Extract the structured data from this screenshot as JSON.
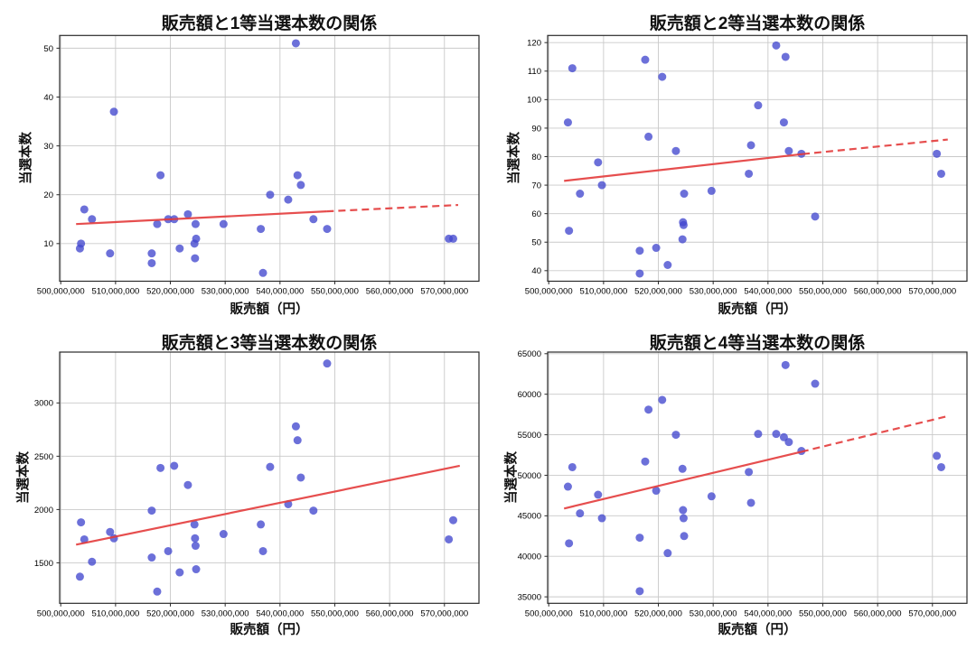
{
  "page": {
    "background": "#ffffff",
    "grid_layout": "2x2"
  },
  "colors": {
    "marker": "#4348ce",
    "marker_opacity": 0.78,
    "trend": "#e33b3b",
    "grid": "#c9c9c9",
    "spine": "#2a2a2a",
    "text": "#000000"
  },
  "chart_data": [
    {
      "type": "scatter",
      "title": "販売額と1等当選本数の関係",
      "xlabel": "販売額（円）",
      "ylabel": "当選本数",
      "grid": true,
      "legend": null,
      "xlim": [
        499800000,
        576300000
      ],
      "ylim": [
        2.3,
        52.6
      ],
      "x_ticks": {
        "values": [
          500000000,
          510000000,
          520000000,
          530000000,
          540000000,
          550000000,
          560000000,
          570000000
        ],
        "labels": [
          "500,000,000",
          "510,000,000",
          "520,000,000",
          "530,000,000",
          "540,000,000",
          "550,000,000",
          "560,000,000",
          "570,000,000"
        ]
      },
      "y_ticks": [
        10,
        20,
        30,
        40,
        50
      ],
      "points": [
        [
          503500000,
          9
        ],
        [
          503700000,
          10
        ],
        [
          504300000,
          17
        ],
        [
          505700000,
          15
        ],
        [
          509000000,
          8
        ],
        [
          509700000,
          37
        ],
        [
          516600000,
          8
        ],
        [
          516600000,
          6
        ],
        [
          517600000,
          14
        ],
        [
          518200000,
          24
        ],
        [
          519600000,
          15
        ],
        [
          520700000,
          15
        ],
        [
          521700000,
          9
        ],
        [
          523200000,
          16
        ],
        [
          524400000,
          10
        ],
        [
          524500000,
          7
        ],
        [
          524600000,
          14
        ],
        [
          524700000,
          11
        ],
        [
          529700000,
          14
        ],
        [
          536500000,
          13
        ],
        [
          536900000,
          4
        ],
        [
          538200000,
          20
        ],
        [
          541500000,
          19
        ],
        [
          542900000,
          51
        ],
        [
          543200000,
          24
        ],
        [
          543800000,
          22
        ],
        [
          546100000,
          15
        ],
        [
          548600000,
          13
        ],
        [
          570800000,
          11
        ],
        [
          571600000,
          11
        ]
      ],
      "trend": {
        "solid": [
          [
            502800000,
            14.0
          ],
          [
            548500000,
            16.6
          ]
        ],
        "dashed": [
          [
            548500000,
            16.6
          ],
          [
            572500000,
            17.9
          ]
        ]
      }
    },
    {
      "type": "scatter",
      "title": "販売額と2等当選本数の関係",
      "xlabel": "販売額（円）",
      "ylabel": "当選本数",
      "grid": true,
      "legend": null,
      "xlim": [
        499800000,
        576300000
      ],
      "ylim": [
        36.3,
        122.5
      ],
      "x_ticks": {
        "values": [
          500000000,
          510000000,
          520000000,
          530000000,
          540000000,
          550000000,
          560000000,
          570000000
        ],
        "labels": [
          "500,000,000",
          "510,000,000",
          "520,000,000",
          "530,000,000",
          "540,000,000",
          "550,000,000",
          "560,000,000",
          "570,000,000"
        ]
      },
      "y_ticks": [
        40,
        50,
        60,
        70,
        80,
        90,
        100,
        110,
        120
      ],
      "points": [
        [
          503500000,
          92
        ],
        [
          503700000,
          54
        ],
        [
          504300000,
          111
        ],
        [
          505700000,
          67
        ],
        [
          509000000,
          78
        ],
        [
          509700000,
          70
        ],
        [
          516600000,
          47
        ],
        [
          516600000,
          39
        ],
        [
          517600000,
          114
        ],
        [
          518200000,
          87
        ],
        [
          519600000,
          48
        ],
        [
          520700000,
          108
        ],
        [
          521700000,
          42
        ],
        [
          523200000,
          82
        ],
        [
          524400000,
          51
        ],
        [
          524500000,
          57
        ],
        [
          524600000,
          56
        ],
        [
          524700000,
          67
        ],
        [
          529700000,
          68
        ],
        [
          536500000,
          74
        ],
        [
          536900000,
          84
        ],
        [
          538200000,
          98
        ],
        [
          541500000,
          119
        ],
        [
          542900000,
          92
        ],
        [
          543200000,
          115
        ],
        [
          543800000,
          82
        ],
        [
          546100000,
          81
        ],
        [
          548600000,
          59
        ],
        [
          570800000,
          81
        ],
        [
          571600000,
          74
        ]
      ],
      "trend": {
        "solid": [
          [
            502800000,
            71.5
          ],
          [
            546300000,
            80.9
          ]
        ],
        "dashed": [
          [
            546300000,
            80.9
          ],
          [
            572800000,
            86.0
          ]
        ]
      }
    },
    {
      "type": "scatter",
      "title": "販売額と3等当選本数の関係",
      "xlabel": "販売額（円）",
      "ylabel": "当選本数",
      "grid": true,
      "legend": null,
      "xlim": [
        499800000,
        576300000
      ],
      "ylim": [
        1120,
        3477
      ],
      "x_ticks": {
        "values": [
          500000000,
          510000000,
          520000000,
          530000000,
          540000000,
          550000000,
          560000000,
          570000000
        ],
        "labels": [
          "500,000,000",
          "510,000,000",
          "520,000,000",
          "530,000,000",
          "540,000,000",
          "550,000,000",
          "560,000,000",
          "570,000,000"
        ]
      },
      "y_ticks": [
        1500,
        2000,
        2500,
        3000
      ],
      "points": [
        [
          503500000,
          1370
        ],
        [
          503700000,
          1880
        ],
        [
          504300000,
          1720
        ],
        [
          505700000,
          1510
        ],
        [
          509000000,
          1790
        ],
        [
          509700000,
          1730
        ],
        [
          516600000,
          1990
        ],
        [
          516600000,
          1550
        ],
        [
          517600000,
          1230
        ],
        [
          518200000,
          2390
        ],
        [
          519600000,
          1610
        ],
        [
          520700000,
          2410
        ],
        [
          521700000,
          1410
        ],
        [
          523200000,
          2230
        ],
        [
          524400000,
          1860
        ],
        [
          524500000,
          1730
        ],
        [
          524600000,
          1660
        ],
        [
          524700000,
          1440
        ],
        [
          529700000,
          1770
        ],
        [
          536500000,
          1860
        ],
        [
          536900000,
          1610
        ],
        [
          538200000,
          2400
        ],
        [
          541500000,
          2050
        ],
        [
          542900000,
          2780
        ],
        [
          543200000,
          2650
        ],
        [
          543800000,
          2300
        ],
        [
          546100000,
          1990
        ],
        [
          548600000,
          3370
        ],
        [
          570800000,
          1720
        ],
        [
          571600000,
          1900
        ]
      ],
      "trend": {
        "solid": [
          [
            502800000,
            1670
          ],
          [
            572800000,
            2410
          ]
        ],
        "dashed": null
      }
    },
    {
      "type": "scatter",
      "title": "販売額と4等当選本数の関係",
      "xlabel": "販売額（円）",
      "ylabel": "当選本数",
      "grid": true,
      "legend": null,
      "xlim": [
        499800000,
        576300000
      ],
      "ylim": [
        34200,
        65200
      ],
      "x_ticks": {
        "values": [
          500000000,
          510000000,
          520000000,
          530000000,
          540000000,
          550000000,
          560000000,
          570000000
        ],
        "labels": [
          "500,000,000",
          "510,000,000",
          "520,000,000",
          "530,000,000",
          "540,000,000",
          "550,000,000",
          "560,000,000",
          "570,000,000"
        ]
      },
      "y_ticks": [
        35000,
        40000,
        45000,
        50000,
        55000,
        60000,
        65000
      ],
      "points": [
        [
          503500000,
          48600
        ],
        [
          503700000,
          41600
        ],
        [
          504300000,
          51000
        ],
        [
          505700000,
          45300
        ],
        [
          509000000,
          47600
        ],
        [
          509700000,
          44700
        ],
        [
          516600000,
          42300
        ],
        [
          516600000,
          35700
        ],
        [
          517600000,
          51700
        ],
        [
          518200000,
          58100
        ],
        [
          519600000,
          48100
        ],
        [
          520700000,
          59300
        ],
        [
          521700000,
          40400
        ],
        [
          523200000,
          55000
        ],
        [
          524400000,
          50800
        ],
        [
          524500000,
          45700
        ],
        [
          524600000,
          44700
        ],
        [
          524700000,
          42500
        ],
        [
          529700000,
          47400
        ],
        [
          536500000,
          50400
        ],
        [
          536900000,
          46600
        ],
        [
          538200000,
          55100
        ],
        [
          541500000,
          55100
        ],
        [
          542900000,
          54700
        ],
        [
          543200000,
          63600
        ],
        [
          543800000,
          54100
        ],
        [
          546100000,
          53000
        ],
        [
          548600000,
          61300
        ],
        [
          570800000,
          52400
        ],
        [
          571600000,
          51000
        ]
      ],
      "trend": {
        "solid": [
          [
            502800000,
            45900
          ],
          [
            546100000,
            52900
          ]
        ],
        "dashed": [
          [
            546100000,
            52900
          ],
          [
            572800000,
            57300
          ]
        ]
      }
    }
  ]
}
